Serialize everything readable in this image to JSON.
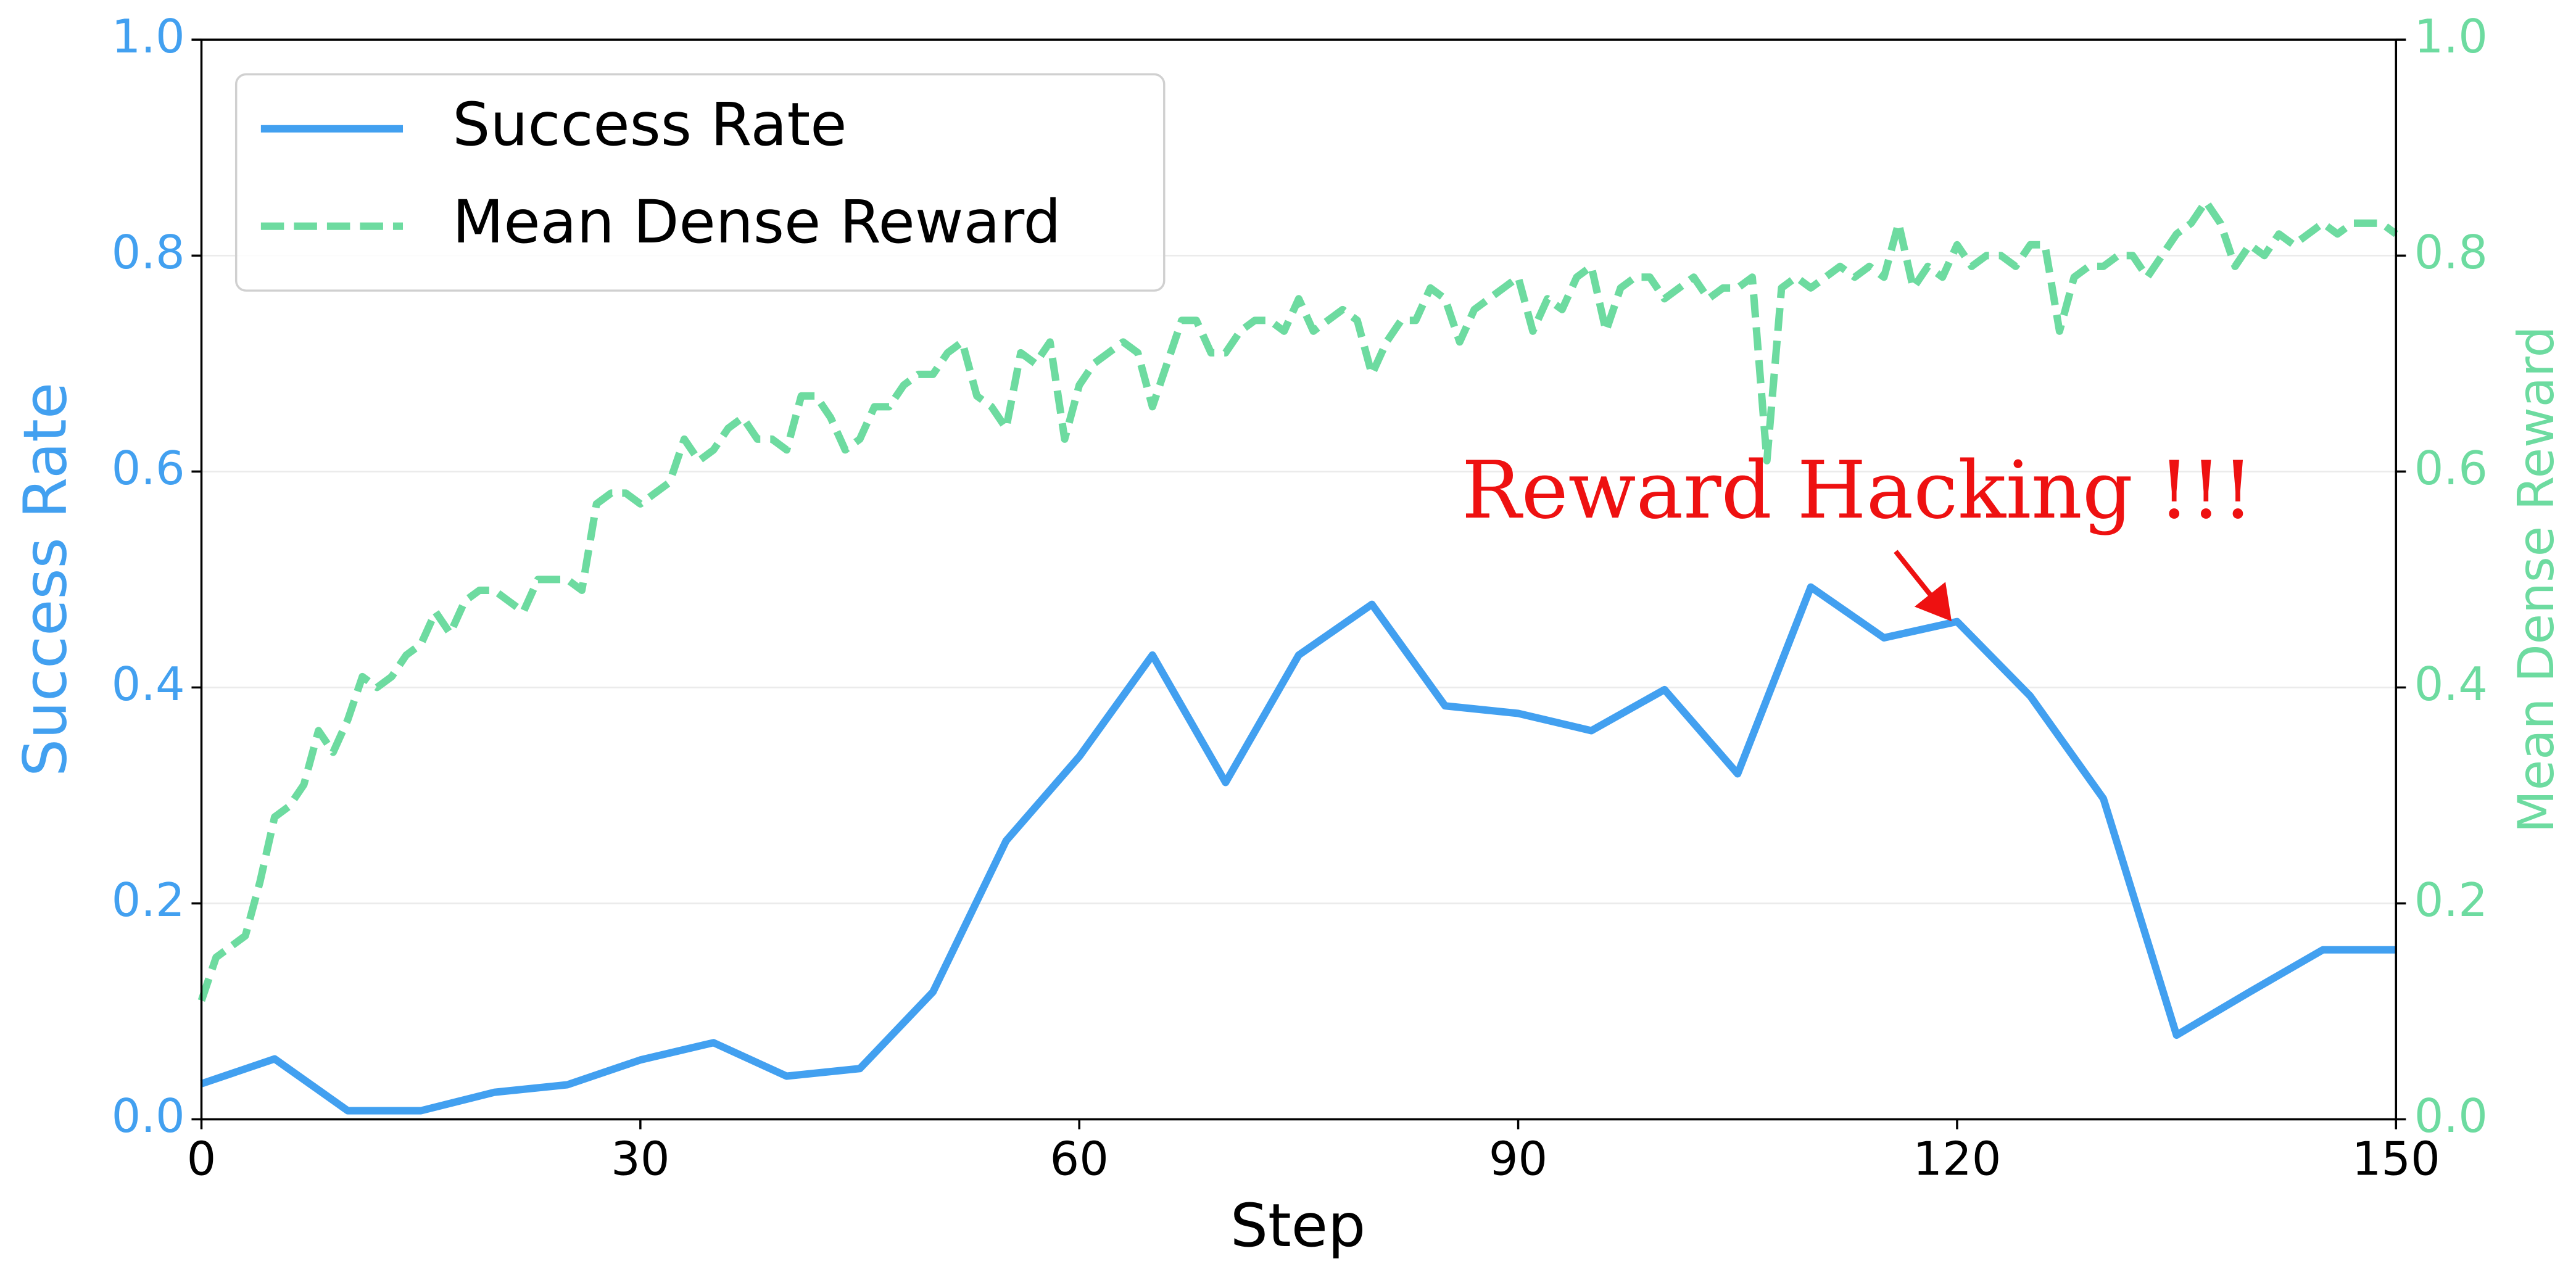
{
  "chart_data": {
    "type": "line",
    "x_label": "Step",
    "y_label": "Success Rate",
    "y2_label": "Mean Dense Reward",
    "annotation": "Reward Hacking !!!",
    "xlim": [
      0,
      150
    ],
    "xticks": [
      0,
      30,
      60,
      90,
      120,
      150
    ],
    "ylim": [
      0,
      1
    ],
    "yticks": [
      {
        "value": 0,
        "label": "0.0"
      },
      0.2,
      0.4,
      0.6,
      0.8,
      {
        "value": 1,
        "label": "1.0"
      }
    ],
    "y2lim": [
      0,
      1
    ],
    "y2ticks": [
      {
        "value": 0,
        "label": "0.0"
      },
      0.2,
      0.4,
      0.6,
      0.8,
      {
        "value": 1,
        "label": "1.0"
      }
    ],
    "grid": true,
    "legend": "upper left",
    "series": [
      {
        "name": "Success Rate",
        "color": "#42a0f0",
        "linestyle": "solid",
        "x": [
          0,
          5,
          10,
          15,
          20,
          25,
          30,
          35,
          40,
          45,
          50,
          55,
          60,
          65,
          70,
          75,
          80,
          85,
          90,
          95,
          100,
          105,
          110,
          115,
          120,
          125,
          130,
          135,
          140,
          145,
          150
        ],
        "values": [
          0.033,
          0.056,
          0.008,
          0.008,
          0.025,
          0.032,
          0.055,
          0.071,
          0.04,
          0.047,
          0.118,
          0.258,
          0.336,
          0.43,
          0.312,
          0.43,
          0.477,
          0.383,
          0.376,
          0.36,
          0.398,
          0.32,
          0.493,
          0.446,
          0.461,
          0.392,
          0.297,
          0.078,
          0.118,
          0.157,
          0.157
        ]
      },
      {
        "name": "Mean Dense Reward",
        "color": "#6ddba0",
        "linestyle": "dashed",
        "axis": "y2",
        "x": [
          0,
          1,
          2,
          3,
          4,
          5,
          6,
          7,
          8,
          9,
          10,
          11,
          12,
          13,
          14,
          15,
          16,
          17,
          18,
          19,
          20,
          21,
          22,
          23,
          24,
          25,
          26,
          27,
          28,
          29,
          30,
          31,
          32,
          33,
          34,
          35,
          36,
          37,
          38,
          39,
          40,
          41,
          42,
          43,
          44,
          45,
          46,
          47,
          48,
          49,
          50,
          51,
          52,
          53,
          54,
          55,
          56,
          57,
          58,
          59,
          60,
          61,
          62,
          63,
          64,
          65,
          66,
          67,
          68,
          69,
          70,
          71,
          72,
          73,
          74,
          75,
          76,
          77,
          78,
          79,
          80,
          81,
          82,
          83,
          84,
          85,
          86,
          87,
          88,
          89,
          90,
          91,
          92,
          93,
          94,
          95,
          96,
          97,
          98,
          99,
          100,
          101,
          102,
          103,
          104,
          105,
          106,
          107,
          108,
          109,
          110,
          111,
          112,
          113,
          114,
          115,
          116,
          117,
          118,
          119,
          120,
          121,
          122,
          123,
          124,
          125,
          126,
          127,
          128,
          129,
          130,
          131,
          132,
          133,
          134,
          135,
          136,
          137,
          138,
          139,
          140,
          141,
          142,
          143,
          144,
          145,
          146,
          147,
          148,
          149,
          150
        ],
        "values": [
          0.11,
          0.15,
          0.16,
          0.17,
          0.22,
          0.28,
          0.29,
          0.31,
          0.36,
          0.34,
          0.37,
          0.41,
          0.4,
          0.41,
          0.43,
          0.44,
          0.47,
          0.45,
          0.48,
          0.49,
          0.49,
          0.48,
          0.47,
          0.5,
          0.5,
          0.5,
          0.49,
          0.57,
          0.58,
          0.58,
          0.57,
          0.58,
          0.59,
          0.63,
          0.61,
          0.62,
          0.64,
          0.65,
          0.63,
          0.63,
          0.62,
          0.67,
          0.67,
          0.65,
          0.62,
          0.63,
          0.66,
          0.66,
          0.68,
          0.69,
          0.69,
          0.71,
          0.72,
          0.67,
          0.66,
          0.64,
          0.71,
          0.7,
          0.72,
          0.63,
          0.68,
          0.7,
          0.71,
          0.72,
          0.71,
          0.66,
          0.7,
          0.74,
          0.74,
          0.71,
          0.71,
          0.73,
          0.74,
          0.74,
          0.73,
          0.76,
          0.73,
          0.74,
          0.75,
          0.74,
          0.69,
          0.72,
          0.74,
          0.74,
          0.77,
          0.76,
          0.72,
          0.75,
          0.76,
          0.77,
          0.78,
          0.73,
          0.76,
          0.75,
          0.78,
          0.79,
          0.73,
          0.77,
          0.78,
          0.78,
          0.76,
          0.77,
          0.78,
          0.76,
          0.77,
          0.77,
          0.78,
          0.61,
          0.77,
          0.78,
          0.77,
          0.78,
          0.79,
          0.78,
          0.79,
          0.78,
          0.83,
          0.77,
          0.79,
          0.78,
          0.81,
          0.79,
          0.8,
          0.8,
          0.79,
          0.81,
          0.81,
          0.73,
          0.78,
          0.79,
          0.79,
          0.8,
          0.8,
          0.78,
          0.8,
          0.82,
          0.83,
          0.85,
          0.83,
          0.79,
          0.81,
          0.8,
          0.82,
          0.81,
          0.82,
          0.83,
          0.82,
          0.83,
          0.83,
          0.83,
          0.82
        ]
      }
    ]
  }
}
